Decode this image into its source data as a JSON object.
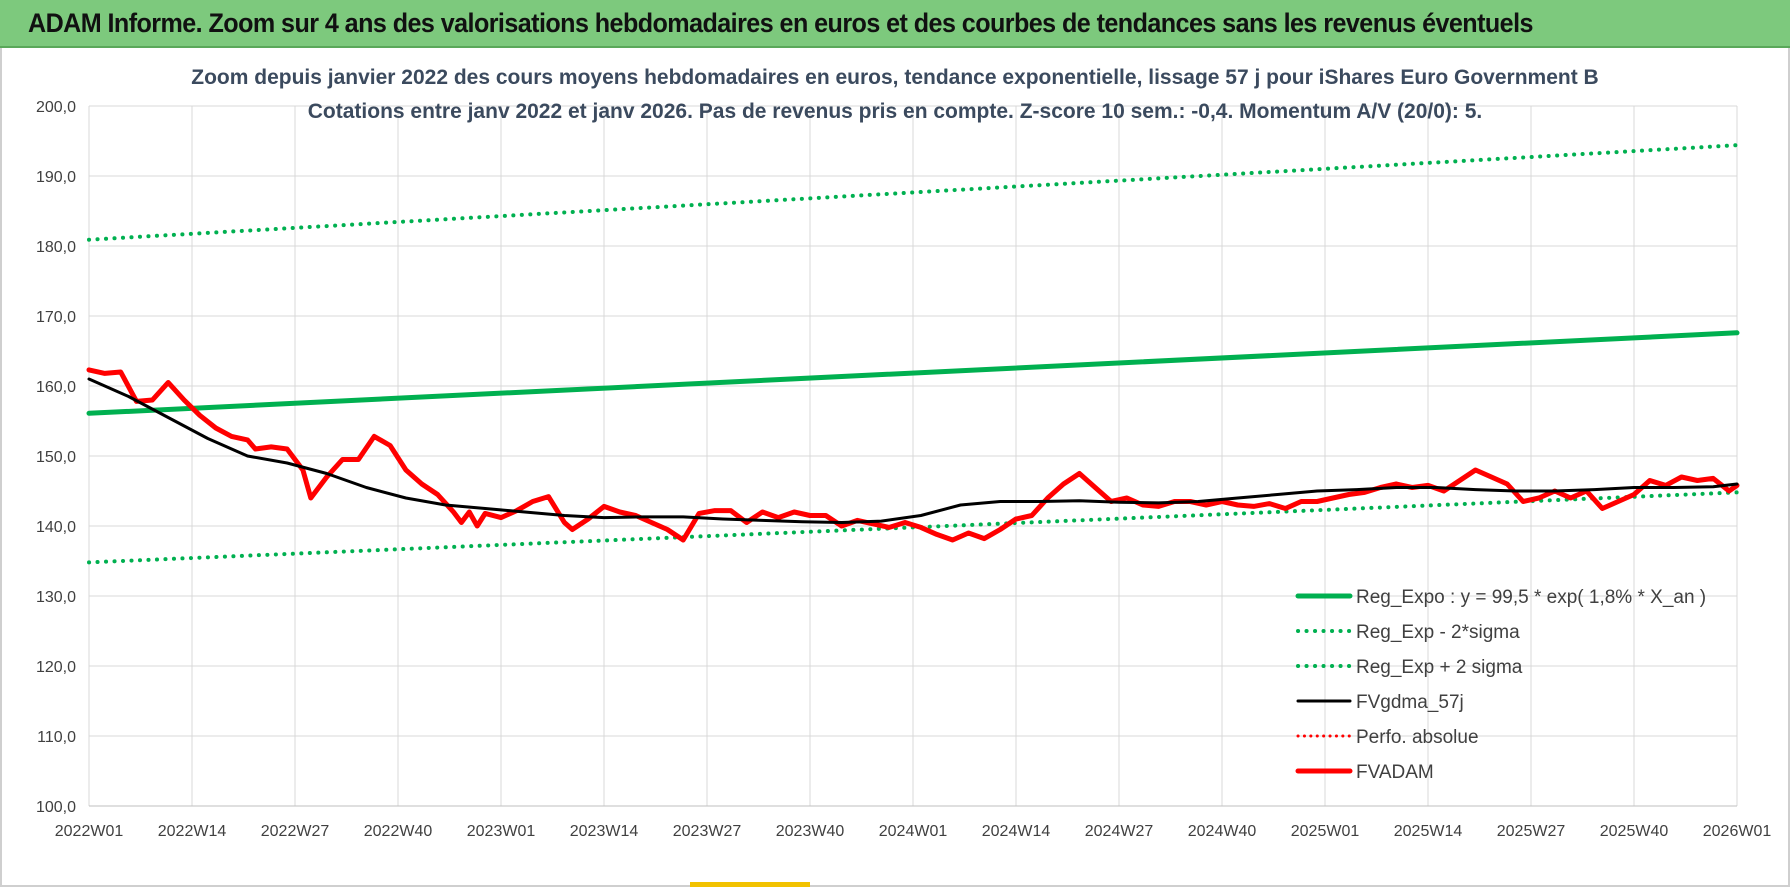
{
  "header": {
    "title": "ADAM Informe. Zoom sur 4 ans des valorisations hebdomadaires en euros et des courbes de tendances sans les revenus éventuels"
  },
  "chart_data": {
    "type": "line",
    "title": "Zoom depuis janvier 2022 des cours moyens hebdomadaires en euros, tendance exponentielle, lissage 57 j pour iShares Euro Government B",
    "subtitle": "Cotations entre janv 2022 et janv 2026. Pas de revenus pris en compte. Z-score 10 sem.: -0,4. Momentum A/V (20/0): 5.",
    "xlabel": "",
    "ylabel": "",
    "ylim": [
      100,
      200
    ],
    "y_ticks": [
      "100,0",
      "110,0",
      "120,0",
      "130,0",
      "140,0",
      "150,0",
      "160,0",
      "170,0",
      "180,0",
      "190,0",
      "200,0"
    ],
    "x_ticks": [
      "2022W01",
      "2022W14",
      "2022W27",
      "2022W40",
      "2023W01",
      "2023W14",
      "2023W27",
      "2023W40",
      "2024W01",
      "2024W14",
      "2024W27",
      "2024W40",
      "2025W01",
      "2025W14",
      "2025W27",
      "2025W40",
      "2026W01"
    ],
    "x_range_weeks": [
      0,
      208
    ],
    "grid": true,
    "legend_position": "bottom-right",
    "series": [
      {
        "name": "Reg_Expo : y = 99,5 * exp( 1,8% *  X_an )",
        "color": "#00b050",
        "style": "solid",
        "width": 5,
        "points": [
          [
            0,
            156.1
          ],
          [
            208,
            167.6
          ]
        ]
      },
      {
        "name": "Reg_Exp - 2*sigma",
        "color": "#00b050",
        "style": "dotted",
        "width": 4,
        "points": [
          [
            0,
            134.8
          ],
          [
            208,
            144.8
          ]
        ]
      },
      {
        "name": "Reg_Exp + 2 sigma",
        "color": "#00b050",
        "style": "dotted",
        "width": 4,
        "points": [
          [
            0,
            180.9
          ],
          [
            208,
            194.4
          ]
        ]
      },
      {
        "name": "FVgdma_57j",
        "color": "#000000",
        "style": "solid",
        "width": 3,
        "points": [
          [
            0,
            161.0
          ],
          [
            5,
            158.5
          ],
          [
            10,
            155.5
          ],
          [
            15,
            152.5
          ],
          [
            20,
            150.0
          ],
          [
            25,
            149.0
          ],
          [
            30,
            147.5
          ],
          [
            35,
            145.5
          ],
          [
            40,
            144.0
          ],
          [
            45,
            143.0
          ],
          [
            50,
            142.5
          ],
          [
            55,
            142.0
          ],
          [
            60,
            141.5
          ],
          [
            65,
            141.2
          ],
          [
            70,
            141.3
          ],
          [
            75,
            141.3
          ],
          [
            80,
            141.0
          ],
          [
            85,
            140.8
          ],
          [
            90,
            140.6
          ],
          [
            95,
            140.5
          ],
          [
            100,
            140.7
          ],
          [
            105,
            141.5
          ],
          [
            110,
            143.0
          ],
          [
            115,
            143.5
          ],
          [
            120,
            143.5
          ],
          [
            125,
            143.6
          ],
          [
            130,
            143.4
          ],
          [
            135,
            143.3
          ],
          [
            140,
            143.5
          ],
          [
            145,
            144.0
          ],
          [
            150,
            144.5
          ],
          [
            155,
            145.0
          ],
          [
            160,
            145.2
          ],
          [
            165,
            145.5
          ],
          [
            170,
            145.5
          ],
          [
            175,
            145.2
          ],
          [
            180,
            145.0
          ],
          [
            185,
            145.0
          ],
          [
            190,
            145.2
          ],
          [
            195,
            145.5
          ],
          [
            200,
            145.5
          ],
          [
            205,
            145.6
          ],
          [
            208,
            146.0
          ]
        ]
      },
      {
        "name": "Perfo. absolue",
        "color": "#ff0000",
        "style": "dotted",
        "width": 3,
        "points": []
      },
      {
        "name": "FVADAM",
        "color": "#ff0000",
        "style": "solid",
        "width": 5,
        "points": [
          [
            0,
            162.3
          ],
          [
            2,
            161.8
          ],
          [
            4,
            162.0
          ],
          [
            6,
            157.8
          ],
          [
            8,
            158.0
          ],
          [
            10,
            160.5
          ],
          [
            12,
            158.0
          ],
          [
            14,
            155.8
          ],
          [
            16,
            154.0
          ],
          [
            18,
            152.8
          ],
          [
            20,
            152.3
          ],
          [
            21,
            151.0
          ],
          [
            23,
            151.3
          ],
          [
            25,
            151.0
          ],
          [
            27,
            148.0
          ],
          [
            28,
            144.0
          ],
          [
            30,
            147.0
          ],
          [
            32,
            149.5
          ],
          [
            34,
            149.5
          ],
          [
            36,
            152.8
          ],
          [
            38,
            151.5
          ],
          [
            40,
            148.0
          ],
          [
            42,
            146.0
          ],
          [
            44,
            144.5
          ],
          [
            46,
            142.0
          ],
          [
            47,
            140.5
          ],
          [
            48,
            142.0
          ],
          [
            49,
            140.0
          ],
          [
            50,
            141.8
          ],
          [
            52,
            141.2
          ],
          [
            54,
            142.2
          ],
          [
            56,
            143.5
          ],
          [
            58,
            144.2
          ],
          [
            60,
            140.5
          ],
          [
            61,
            139.5
          ],
          [
            63,
            141.0
          ],
          [
            65,
            142.8
          ],
          [
            67,
            142.0
          ],
          [
            69,
            141.5
          ],
          [
            71,
            140.5
          ],
          [
            73,
            139.5
          ],
          [
            75,
            138.0
          ],
          [
            77,
            141.8
          ],
          [
            79,
            142.2
          ],
          [
            81,
            142.2
          ],
          [
            83,
            140.5
          ],
          [
            85,
            142.0
          ],
          [
            87,
            141.2
          ],
          [
            89,
            142.0
          ],
          [
            91,
            141.5
          ],
          [
            93,
            141.5
          ],
          [
            95,
            140.0
          ],
          [
            97,
            140.8
          ],
          [
            99,
            140.3
          ],
          [
            101,
            139.8
          ],
          [
            103,
            140.5
          ],
          [
            105,
            139.8
          ],
          [
            107,
            138.8
          ],
          [
            109,
            138.0
          ],
          [
            111,
            139.0
          ],
          [
            113,
            138.2
          ],
          [
            115,
            139.5
          ],
          [
            117,
            141.0
          ],
          [
            119,
            141.5
          ],
          [
            121,
            144.0
          ],
          [
            123,
            146.0
          ],
          [
            125,
            147.5
          ],
          [
            127,
            145.5
          ],
          [
            129,
            143.5
          ],
          [
            131,
            144.0
          ],
          [
            133,
            143.0
          ],
          [
            135,
            142.8
          ],
          [
            137,
            143.5
          ],
          [
            139,
            143.5
          ],
          [
            141,
            143.0
          ],
          [
            143,
            143.5
          ],
          [
            145,
            143.0
          ],
          [
            147,
            142.8
          ],
          [
            149,
            143.2
          ],
          [
            151,
            142.5
          ],
          [
            153,
            143.5
          ],
          [
            155,
            143.5
          ],
          [
            157,
            144.0
          ],
          [
            159,
            144.5
          ],
          [
            161,
            144.8
          ],
          [
            163,
            145.5
          ],
          [
            165,
            146.0
          ],
          [
            167,
            145.5
          ],
          [
            169,
            145.8
          ],
          [
            171,
            145.0
          ],
          [
            173,
            146.5
          ],
          [
            175,
            148.0
          ],
          [
            177,
            147.0
          ],
          [
            179,
            146.0
          ],
          [
            181,
            143.5
          ],
          [
            183,
            144.0
          ],
          [
            185,
            145.0
          ],
          [
            187,
            144.0
          ],
          [
            189,
            145.0
          ],
          [
            191,
            142.5
          ],
          [
            193,
            143.5
          ],
          [
            195,
            144.5
          ],
          [
            197,
            146.5
          ],
          [
            199,
            145.8
          ],
          [
            201,
            147.0
          ],
          [
            203,
            146.5
          ],
          [
            205,
            146.8
          ],
          [
            207,
            145.0
          ],
          [
            208,
            145.8
          ]
        ]
      }
    ]
  }
}
